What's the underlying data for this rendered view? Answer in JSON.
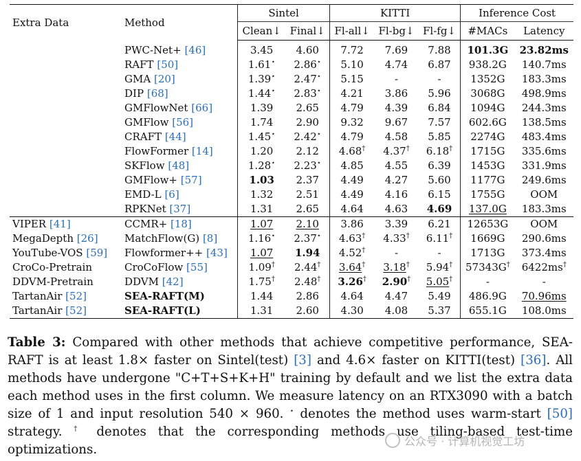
{
  "header": {
    "extra_data": "Extra Data",
    "method": "Method",
    "groups": {
      "sintel": "Sintel",
      "kitti": "KITTI",
      "inference": "Inference Cost"
    },
    "cols": [
      "Clean↓",
      "Final↓",
      "Fl-all↓",
      "Fl-bg↓",
      "Fl-fg↓",
      "#MACs",
      "Latency"
    ]
  },
  "group1": [
    {
      "extra": "",
      "method": "PWC-Net+",
      "ref": "46",
      "cells": [
        {
          "v": "3.45"
        },
        {
          "v": "4.60"
        },
        {
          "v": "7.72"
        },
        {
          "v": "7.69"
        },
        {
          "v": "7.88"
        },
        {
          "v": "101.3G",
          "b": true
        },
        {
          "v": "23.82ms",
          "b": true
        }
      ]
    },
    {
      "extra": "",
      "method": "RAFT",
      "ref": "50",
      "cells": [
        {
          "v": "1.61",
          "s": "⋆"
        },
        {
          "v": "2.86",
          "s": "⋆"
        },
        {
          "v": "5.10"
        },
        {
          "v": "4.74"
        },
        {
          "v": "6.87"
        },
        {
          "v": "938.2G"
        },
        {
          "v": "140.7ms"
        }
      ]
    },
    {
      "extra": "",
      "method": "GMA",
      "ref": "20",
      "cells": [
        {
          "v": "1.39",
          "s": "⋆"
        },
        {
          "v": "2.47",
          "s": "⋆"
        },
        {
          "v": "5.15"
        },
        {
          "v": "-"
        },
        {
          "v": "-"
        },
        {
          "v": "1352G"
        },
        {
          "v": "183.3ms"
        }
      ]
    },
    {
      "extra": "",
      "method": "DIP",
      "ref": "68",
      "cells": [
        {
          "v": "1.44",
          "s": "⋆"
        },
        {
          "v": "2.83",
          "s": "⋆"
        },
        {
          "v": "4.21"
        },
        {
          "v": "3.86"
        },
        {
          "v": "5.96"
        },
        {
          "v": "3068G"
        },
        {
          "v": "498.9ms"
        }
      ]
    },
    {
      "extra": "",
      "method": "GMFlowNet",
      "ref": "66",
      "cells": [
        {
          "v": "1.39"
        },
        {
          "v": "2.65"
        },
        {
          "v": "4.79"
        },
        {
          "v": "4.39"
        },
        {
          "v": "6.84"
        },
        {
          "v": "1094G"
        },
        {
          "v": "244.3ms"
        }
      ]
    },
    {
      "extra": "",
      "method": "GMFlow",
      "ref": "56",
      "cells": [
        {
          "v": "1.74"
        },
        {
          "v": "2.90"
        },
        {
          "v": "9.32"
        },
        {
          "v": "9.67"
        },
        {
          "v": "7.57"
        },
        {
          "v": "602.6G"
        },
        {
          "v": "138.5ms"
        }
      ]
    },
    {
      "extra": "",
      "method": "CRAFT",
      "ref": "44",
      "cells": [
        {
          "v": "1.45",
          "s": "⋆"
        },
        {
          "v": "2.42",
          "s": "⋆"
        },
        {
          "v": "4.79"
        },
        {
          "v": "4.58"
        },
        {
          "v": "5.85"
        },
        {
          "v": "2274G"
        },
        {
          "v": "483.4ms"
        }
      ]
    },
    {
      "extra": "",
      "method": "FlowFormer",
      "ref": "14",
      "cells": [
        {
          "v": "1.20"
        },
        {
          "v": "2.12"
        },
        {
          "v": "4.68",
          "s": "†"
        },
        {
          "v": "4.37",
          "s": "†"
        },
        {
          "v": "6.18",
          "s": "†"
        },
        {
          "v": "1715G"
        },
        {
          "v": "335.6ms"
        }
      ]
    },
    {
      "extra": "",
      "method": "SKFlow",
      "ref": "48",
      "cells": [
        {
          "v": "1.28",
          "s": "⋆"
        },
        {
          "v": "2.23",
          "s": "⋆"
        },
        {
          "v": "4.85"
        },
        {
          "v": "4.55"
        },
        {
          "v": "6.39"
        },
        {
          "v": "1453G"
        },
        {
          "v": "331.9ms"
        }
      ]
    },
    {
      "extra": "",
      "method": "GMFlow+",
      "ref": "57",
      "cells": [
        {
          "v": "1.03",
          "b": true
        },
        {
          "v": "2.37"
        },
        {
          "v": "4.49"
        },
        {
          "v": "4.27"
        },
        {
          "v": "5.60"
        },
        {
          "v": "1177G"
        },
        {
          "v": "249.6ms"
        }
      ]
    },
    {
      "extra": "",
      "method": "EMD-L",
      "ref": "6",
      "cells": [
        {
          "v": "1.32"
        },
        {
          "v": "2.51"
        },
        {
          "v": "4.49"
        },
        {
          "v": "4.16"
        },
        {
          "v": "6.15"
        },
        {
          "v": "1755G"
        },
        {
          "v": "OOM"
        }
      ]
    },
    {
      "extra": "",
      "method": "RPKNet",
      "ref": "37",
      "cells": [
        {
          "v": "1.31"
        },
        {
          "v": "2.65"
        },
        {
          "v": "4.64"
        },
        {
          "v": "4.63"
        },
        {
          "v": "4.69",
          "b": true
        },
        {
          "v": "137.0G",
          "u": true
        },
        {
          "v": "183.3ms"
        }
      ]
    }
  ],
  "group2": [
    {
      "extra": "VIPER",
      "extra_ref": "41",
      "method": "CCMR+",
      "ref": "18",
      "cells": [
        {
          "v": "1.07",
          "u": true
        },
        {
          "v": "2.10",
          "u": true
        },
        {
          "v": "3.86"
        },
        {
          "v": "3.39"
        },
        {
          "v": "6.21"
        },
        {
          "v": "12653G"
        },
        {
          "v": "OOM"
        }
      ]
    },
    {
      "extra": "MegaDepth",
      "extra_ref": "26",
      "method": "MatchFlow(G)",
      "ref": "8",
      "cells": [
        {
          "v": "1.16",
          "s": "⋆"
        },
        {
          "v": "2.37",
          "s": "⋆"
        },
        {
          "v": "4.63",
          "s": "†"
        },
        {
          "v": "4.33",
          "s": "†"
        },
        {
          "v": "6.11",
          "s": "†"
        },
        {
          "v": "1669G"
        },
        {
          "v": "290.6ms"
        }
      ]
    },
    {
      "extra": "YouTube-VOS",
      "extra_ref": "59",
      "method": "Flowformer++",
      "ref": "43",
      "cells": [
        {
          "v": "1.07",
          "u": true
        },
        {
          "v": "1.94",
          "b": true
        },
        {
          "v": "4.52",
          "s": "†"
        },
        {
          "v": "-"
        },
        {
          "v": "-"
        },
        {
          "v": "1713G"
        },
        {
          "v": "373.4ms"
        }
      ]
    },
    {
      "extra": "CroCo-Pretrain",
      "extra_ref": "",
      "method": "CroCoFlow",
      "ref": "55",
      "cells": [
        {
          "v": "1.09",
          "s": "†"
        },
        {
          "v": "2.44",
          "s": "†"
        },
        {
          "v": "3.64",
          "s": "†",
          "u": true
        },
        {
          "v": "3.18",
          "s": "†",
          "u": true
        },
        {
          "v": "5.94",
          "s": "†"
        },
        {
          "v": "57343G",
          "s": "†"
        },
        {
          "v": "6422ms",
          "s": "†"
        }
      ]
    },
    {
      "extra": "DDVM-Pretrain",
      "extra_ref": "",
      "method": "DDVM",
      "ref": "42",
      "cells": [
        {
          "v": "1.75",
          "s": "†"
        },
        {
          "v": "2.48",
          "s": "†"
        },
        {
          "v": "3.26",
          "s": "†",
          "b": true
        },
        {
          "v": "2.90",
          "s": "†",
          "b": true
        },
        {
          "v": "5.05",
          "s": "†",
          "u": true
        },
        {
          "v": "-"
        },
        {
          "v": "-"
        }
      ]
    },
    {
      "extra": "TartanAir",
      "extra_ref": "52",
      "method": "SEA-RAFT(M)",
      "ref": "",
      "bold_method": true,
      "cells": [
        {
          "v": "1.44"
        },
        {
          "v": "2.86"
        },
        {
          "v": "4.64"
        },
        {
          "v": "4.47"
        },
        {
          "v": "5.49"
        },
        {
          "v": "486.9G"
        },
        {
          "v": "70.96ms",
          "u": true
        }
      ]
    },
    {
      "extra": "TartanAir",
      "extra_ref": "52",
      "method": "SEA-RAFT(L)",
      "ref": "",
      "bold_method": true,
      "cells": [
        {
          "v": "1.31"
        },
        {
          "v": "2.60"
        },
        {
          "v": "4.30"
        },
        {
          "v": "4.08"
        },
        {
          "v": "5.37"
        },
        {
          "v": "655.1G"
        },
        {
          "v": "108.0ms"
        }
      ]
    }
  ],
  "caption": {
    "label": "Table 3:",
    "p1": " Compared with other methods that achieve competitive performance, SEA-RAFT is at least 1.8× faster on Sintel(test) ",
    "r1": "[3]",
    "p2": " and 4.6× faster on KITTI(test) ",
    "r2": "[36]",
    "p3": ". All methods have undergone \"C+T+S+K+H\" training by default and we list the extra data each method uses in the first column. We measure latency on an RTX3090 with a batch size of 1 and input resolution 540 × 960. ",
    "star": "⋆",
    "p4": " denotes the method uses warm-start ",
    "r3": "[50]",
    "p5": " strategy. ",
    "dagger": "†",
    "p6": " denotes that the corresponding methods use tiling-based test-time optimizations."
  },
  "watermark": "公众号 · 计算机视觉工坊"
}
